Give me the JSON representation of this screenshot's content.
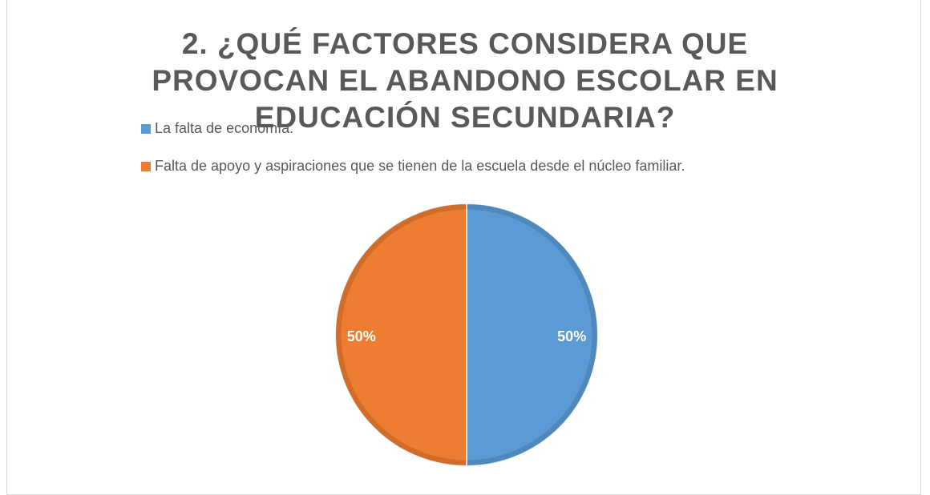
{
  "chart_data": {
    "type": "pie",
    "title": "2. ¿QUÉ FACTORES CONSIDERA QUE PROVOCAN EL ABANDONO ESCOLAR EN EDUCACIÓN SECUNDARIA?",
    "categories": [
      "La falta de economía.",
      "Falta de apoyo y aspiraciones que se tienen de la escuela desde el núcleo familiar."
    ],
    "values": [
      50,
      50
    ],
    "value_labels": [
      "50%",
      "50%"
    ],
    "colors": [
      "#5b9bd5",
      "#ed7d31"
    ],
    "legend": "top-left"
  }
}
